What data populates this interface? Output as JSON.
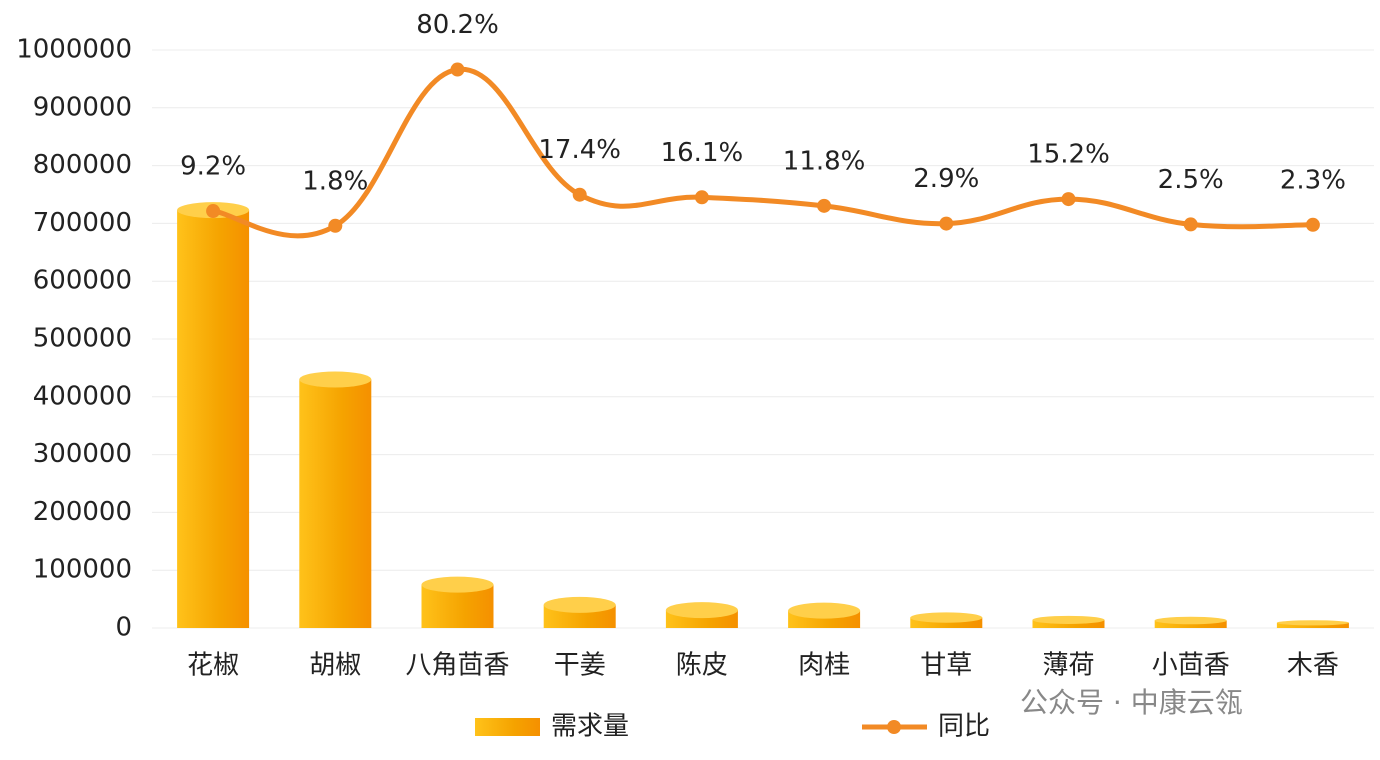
{
  "chart_data": {
    "type": "bar-line",
    "categories": [
      "花椒",
      "胡椒",
      "八角茴香",
      "干姜",
      "陈皮",
      "肉桂",
      "甘草",
      "薄荷",
      "小茴香",
      "木香"
    ],
    "series": [
      {
        "name": "需求量",
        "type": "bar",
        "color": "#f5a300",
        "values": [
          723000,
          430000,
          75000,
          40000,
          31000,
          30000,
          18000,
          14000,
          13000,
          9000
        ]
      },
      {
        "name": "同比",
        "type": "line",
        "axis": "y2",
        "color": "#f28a25",
        "values": [
          9.2,
          1.8,
          80.2,
          17.4,
          16.1,
          11.8,
          2.9,
          15.2,
          2.5,
          2.3
        ],
        "value_labels": [
          "9.2%",
          "1.8%",
          "80.2%",
          "17.4%",
          "16.1%",
          "11.8%",
          "2.9%",
          "15.2%",
          "2.5%",
          "2.3%"
        ]
      }
    ],
    "ylim": [
      0,
      1000000
    ],
    "yticks": [
      0,
      100000,
      200000,
      300000,
      400000,
      500000,
      600000,
      700000,
      800000,
      900000,
      1000000
    ],
    "y2lim": [
      -200,
      90
    ],
    "grid": true,
    "legend": "bottom",
    "watermark": "公众号 · 中康云瓴"
  }
}
